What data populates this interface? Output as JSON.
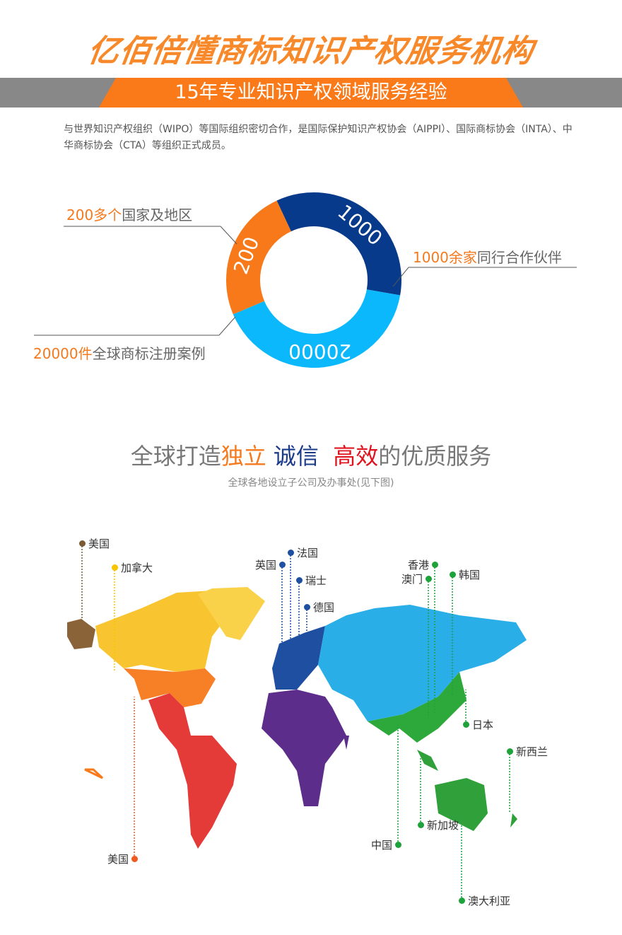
{
  "header": {
    "title": "亿佰倍懂商标知识产权服务机构",
    "banner": "15年专业知识产权领域服务经验",
    "intro": "与世界知识产权组织（WIPO）等国际组织密切合作，是国际保护知识产权协会（AIPPI）、国际商标协会（INTA）、中华商标协会（CTA）等组织正式成员。"
  },
  "donut": {
    "segments": [
      {
        "label": "200",
        "color": "#f7791a"
      },
      {
        "label": "1000",
        "color": "#073a8a"
      },
      {
        "label": "20000",
        "color": "#0ab8fb"
      }
    ],
    "stats": [
      {
        "highlight": "200多个",
        "text": "国家及地区"
      },
      {
        "highlight": "1000余家",
        "text": "同行合作伙伴"
      },
      {
        "highlight": "20000件",
        "text": "全球商标注册案例"
      }
    ]
  },
  "section": {
    "title_a": "全球打造",
    "title_b": "独立",
    "title_c": "诚信",
    "title_d": "高效",
    "title_e": "的优质服务",
    "subtitle": "全球各地设立子公司及办事处(见下图)",
    "colors": {
      "orange": "#f57a1e",
      "navy": "#1a3a8a",
      "red": "#e0141e"
    }
  },
  "map": {
    "offices": [
      {
        "name": "美国",
        "color": "#7a5a32"
      },
      {
        "name": "加拿大",
        "color": "#f8c500"
      },
      {
        "name": "美国",
        "color": "#f05a22"
      },
      {
        "name": "英国",
        "color": "#1f4fa0"
      },
      {
        "name": "法国",
        "color": "#1f4fa0"
      },
      {
        "name": "瑞士",
        "color": "#1f4fa0"
      },
      {
        "name": "德国",
        "color": "#1f4fa0"
      },
      {
        "name": "香港",
        "color": "#1ea23a"
      },
      {
        "name": "澳门",
        "color": "#1ea23a"
      },
      {
        "name": "韩国",
        "color": "#1ea23a"
      },
      {
        "name": "日本",
        "color": "#1ea23a"
      },
      {
        "name": "新西兰",
        "color": "#1ea23a"
      },
      {
        "name": "中国",
        "color": "#1ea23a"
      },
      {
        "name": "新加坡",
        "color": "#1ea23a"
      },
      {
        "name": "澳大利亚",
        "color": "#1ea23a"
      }
    ]
  }
}
